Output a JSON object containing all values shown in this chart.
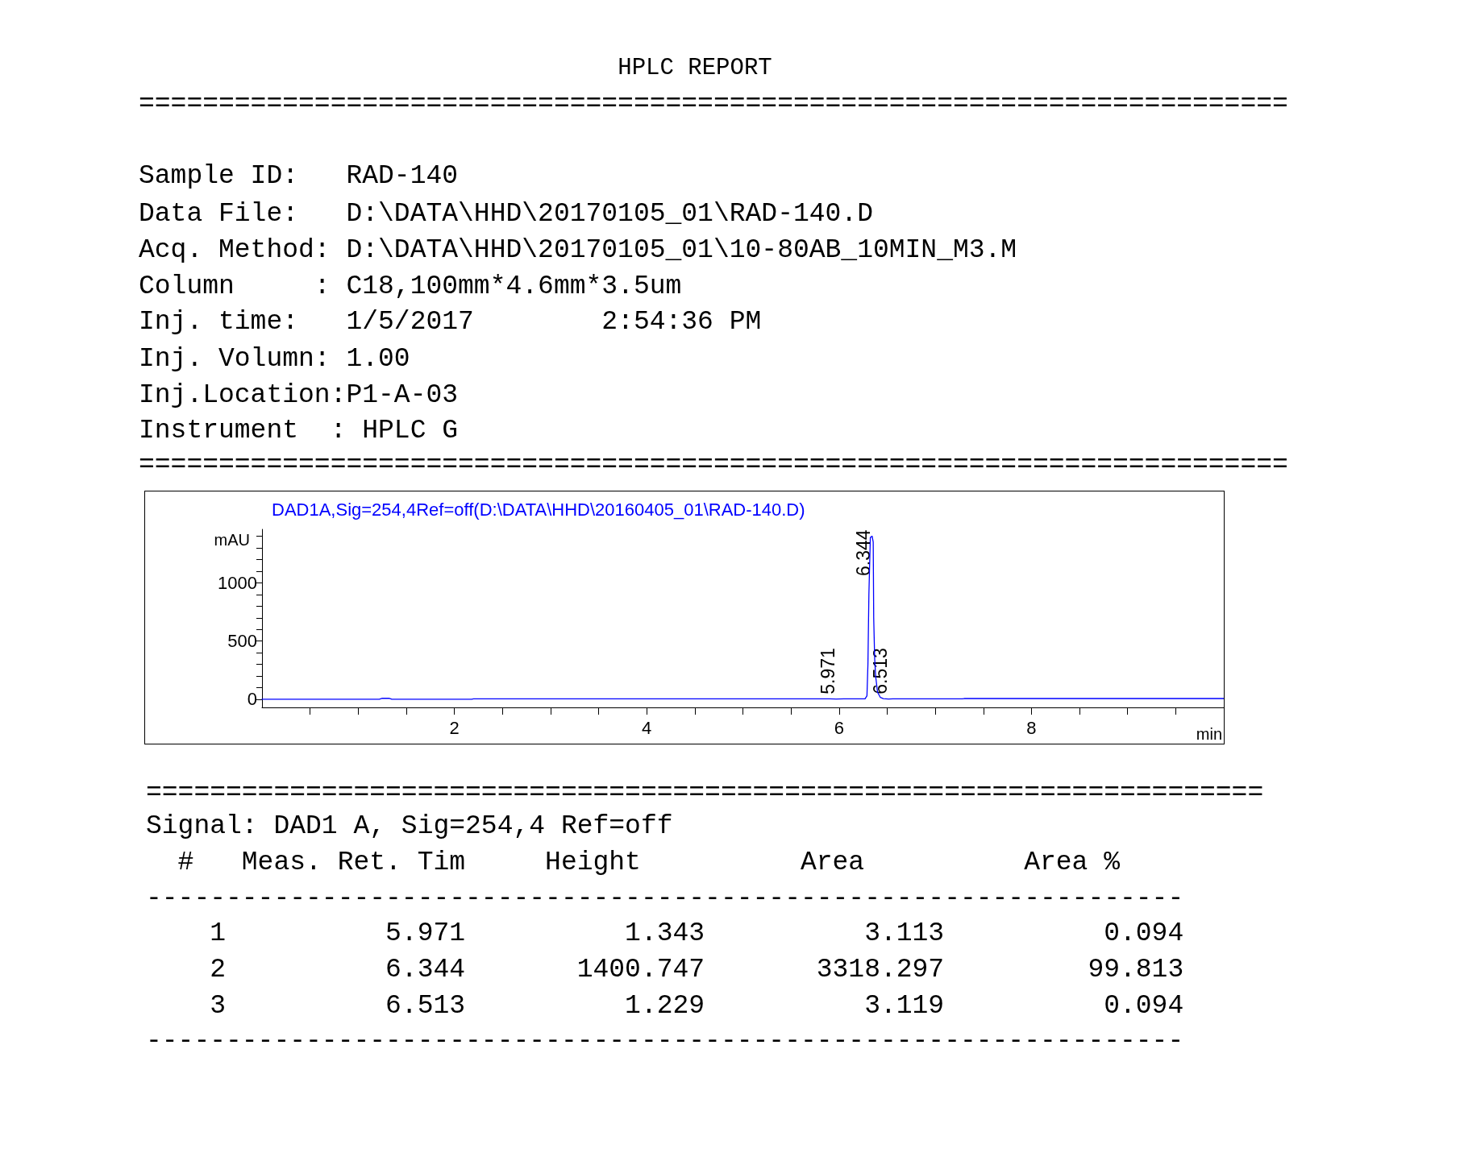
{
  "chart_data": {
    "type": "line",
    "title": "HPLC REPORT",
    "subtitle": "DAD1A,Sig=254,4Ref=off(D:\\DATA\\HHD\\20160405_01\\RAD-140.D)",
    "xlabel": "min",
    "ylabel": "mAU",
    "xlim": [
      0,
      10
    ],
    "xticks": [
      {
        "value": 0.5,
        "label": null
      },
      {
        "value": 1,
        "label": null
      },
      {
        "value": 1.5,
        "label": null
      },
      2,
      {
        "value": 2.5,
        "label": null
      },
      {
        "value": 3,
        "label": null
      },
      {
        "value": 3.5,
        "label": null
      },
      4,
      {
        "value": 4.5,
        "label": null
      },
      {
        "value": 5,
        "label": null
      },
      {
        "value": 5.5,
        "label": null
      },
      6,
      {
        "value": 6.5,
        "label": null
      },
      {
        "value": 7,
        "label": null
      },
      {
        "value": 7.5,
        "label": null
      },
      8,
      {
        "value": 8.5,
        "label": null
      },
      {
        "value": 9,
        "label": null
      },
      {
        "value": 9.5,
        "label": null
      }
    ],
    "ylim": [
      -70,
      1460
    ],
    "yticks": [
      0,
      {
        "value": 100,
        "label": null
      },
      {
        "value": 200,
        "label": null
      },
      {
        "value": 300,
        "label": null
      },
      {
        "value": 400,
        "label": null
      },
      500,
      {
        "value": 600,
        "label": null
      },
      {
        "value": 700,
        "label": null
      },
      {
        "value": 800,
        "label": null
      },
      {
        "value": 900,
        "label": null
      },
      1000,
      {
        "value": 1100,
        "label": null
      },
      {
        "value": 1200,
        "label": null
      },
      {
        "value": 1300,
        "label": null
      },
      {
        "value": 1400,
        "label": null
      }
    ],
    "marker": "none",
    "line_style": "solid",
    "series": [
      {
        "color": "#0000ff",
        "x": [
          0,
          1.22,
          1.25,
          1.32,
          1.35,
          2.18,
          2.2,
          5.9,
          5.971,
          6.05,
          6.27,
          6.29,
          6.3,
          6.31,
          6.325,
          6.344,
          6.355,
          6.36,
          6.37,
          6.38,
          6.4,
          6.43,
          6.46,
          6.513,
          6.56,
          7.28,
          7.3,
          10
        ],
        "values": [
          0,
          0,
          8,
          8,
          0,
          0,
          3,
          3,
          1.343,
          3,
          3,
          30,
          300,
          900,
          1390,
          1400.747,
          1350,
          700,
          350,
          200,
          60,
          15,
          5,
          1.229,
          3,
          3,
          6,
          6
        ]
      }
    ],
    "annotations": [
      "========================================================================",
      "Sample ID:   RAD-140",
      "Data File:   D:\\DATA\\HHD\\20170105_01\\RAD-140.D",
      "Acq. Method: D:\\DATA\\HHD\\20170105_01\\10-80AB_10MIN_M3.M",
      "Column     : C18,100mm*4.6mm*3.5um",
      "Inj. time:   1/5/2017        2:54:36 PM",
      "Inj. Volumn: 1.00",
      "Inj.Location:P1-A-03",
      "Instrument  : HPLC G",
      "========================================================================",
      "======================================================================",
      "Signal: DAD1 A, Sig=254,4 Ref=off",
      "  #   Meas. Ret. Tim     Height          Area          Area %",
      "-----------------------------------------------------------------",
      "    1          5.971          1.343          3.113          0.094",
      "    2          6.344       1400.747       3318.297         99.813",
      "    3          6.513          1.229          3.119          0.094",
      "-----------------------------------------------------------------",
      {
        "text": "5.971",
        "x": 5.971,
        "y": 1.343
      },
      {
        "text": "6.344",
        "x": 6.344,
        "y": 1400.747
      },
      {
        "text": "6.513",
        "x": 6.513,
        "y": 1.229
      }
    ]
  }
}
